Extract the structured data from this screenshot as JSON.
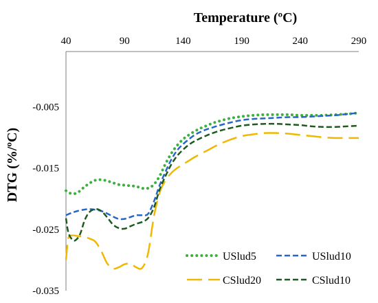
{
  "chart_data": {
    "type": "line",
    "xlabel": "Temperature (ºC)",
    "ylabel": "DTG (%/ºC)",
    "xlim": [
      40,
      290
    ],
    "ylim": [
      -0.035,
      0.004
    ],
    "x_ticks": [
      "40",
      "90",
      "140",
      "190",
      "240",
      "290"
    ],
    "y_ticks": [
      "-0.005",
      "-0.015",
      "-0.025",
      "-0.035"
    ],
    "x_axis_position": "top",
    "grid": false,
    "legend_position": "bottom-right",
    "series": [
      {
        "name": "USlud5",
        "color": "#3cb03c",
        "style": "dotted",
        "x": [
          40,
          45,
          50,
          55,
          60,
          65,
          70,
          75,
          80,
          85,
          90,
          95,
          100,
          105,
          110,
          115,
          120,
          125,
          130,
          135,
          140,
          145,
          150,
          155,
          160,
          165,
          170,
          180,
          190,
          200,
          210,
          220,
          230,
          240,
          250,
          260,
          270,
          280,
          290
        ],
        "values": [
          -0.0187,
          -0.0192,
          -0.019,
          -0.0182,
          -0.0175,
          -0.017,
          -0.0169,
          -0.0171,
          -0.0174,
          -0.0177,
          -0.0178,
          -0.0179,
          -0.018,
          -0.0183,
          -0.0183,
          -0.0177,
          -0.0163,
          -0.0143,
          -0.0126,
          -0.0113,
          -0.0103,
          -0.0096,
          -0.009,
          -0.0085,
          -0.0081,
          -0.0077,
          -0.0074,
          -0.0069,
          -0.0066,
          -0.0064,
          -0.0063,
          -0.0063,
          -0.0063,
          -0.0064,
          -0.0064,
          -0.0064,
          -0.0063,
          -0.0062,
          -0.006
        ]
      },
      {
        "name": "USlud10",
        "color": "#2666c8",
        "style": "dashed",
        "x": [
          40,
          45,
          50,
          55,
          60,
          65,
          70,
          75,
          80,
          85,
          90,
          95,
          100,
          105,
          110,
          115,
          120,
          125,
          130,
          135,
          140,
          145,
          150,
          155,
          160,
          165,
          170,
          180,
          190,
          200,
          210,
          220,
          230,
          240,
          250,
          260,
          270,
          280,
          290
        ],
        "values": [
          -0.0227,
          -0.0223,
          -0.022,
          -0.0218,
          -0.0217,
          -0.0218,
          -0.022,
          -0.0224,
          -0.0229,
          -0.0233,
          -0.0233,
          -0.023,
          -0.0227,
          -0.0227,
          -0.0225,
          -0.0205,
          -0.0178,
          -0.0156,
          -0.0136,
          -0.0121,
          -0.0111,
          -0.0103,
          -0.0096,
          -0.0091,
          -0.0087,
          -0.0084,
          -0.0081,
          -0.0076,
          -0.0072,
          -0.007,
          -0.0069,
          -0.0068,
          -0.0067,
          -0.0067,
          -0.0066,
          -0.0065,
          -0.0064,
          -0.0062,
          -0.006
        ]
      },
      {
        "name": "CSlud20",
        "color": "#f0b800",
        "style": "long-dash",
        "x": [
          40,
          42,
          45,
          50,
          55,
          60,
          65,
          70,
          75,
          80,
          85,
          90,
          95,
          100,
          105,
          110,
          115,
          120,
          125,
          130,
          135,
          140,
          145,
          150,
          160,
          170,
          180,
          190,
          200,
          210,
          220,
          230,
          240,
          250,
          260,
          270,
          280,
          290
        ],
        "values": [
          -0.03,
          -0.0265,
          -0.026,
          -0.0261,
          -0.0262,
          -0.0265,
          -0.027,
          -0.0285,
          -0.0305,
          -0.0314,
          -0.0312,
          -0.0307,
          -0.0306,
          -0.0312,
          -0.0313,
          -0.029,
          -0.023,
          -0.019,
          -0.017,
          -0.0158,
          -0.015,
          -0.0144,
          -0.0138,
          -0.0132,
          -0.0122,
          -0.0112,
          -0.0104,
          -0.0098,
          -0.0095,
          -0.0093,
          -0.0093,
          -0.0094,
          -0.0096,
          -0.0098,
          -0.01,
          -0.0101,
          -0.0101,
          -0.0101
        ]
      },
      {
        "name": "CSlud10",
        "color": "#1e5a1e",
        "style": "dashed",
        "x": [
          40,
          42,
          45,
          48,
          52,
          56,
          60,
          65,
          70,
          75,
          80,
          85,
          90,
          95,
          100,
          105,
          110,
          115,
          120,
          125,
          130,
          135,
          140,
          145,
          150,
          160,
          170,
          180,
          190,
          200,
          210,
          220,
          230,
          240,
          250,
          260,
          270,
          280,
          290
        ],
        "values": [
          -0.0232,
          -0.0255,
          -0.0266,
          -0.0268,
          -0.0258,
          -0.0235,
          -0.0222,
          -0.0217,
          -0.022,
          -0.023,
          -0.0242,
          -0.0248,
          -0.0249,
          -0.0245,
          -0.0241,
          -0.0238,
          -0.0232,
          -0.0215,
          -0.0185,
          -0.0163,
          -0.0144,
          -0.013,
          -0.012,
          -0.0112,
          -0.0106,
          -0.0097,
          -0.009,
          -0.0085,
          -0.0081,
          -0.0079,
          -0.0078,
          -0.0078,
          -0.0079,
          -0.008,
          -0.0082,
          -0.0083,
          -0.0083,
          -0.0082,
          -0.0081
        ]
      }
    ]
  }
}
